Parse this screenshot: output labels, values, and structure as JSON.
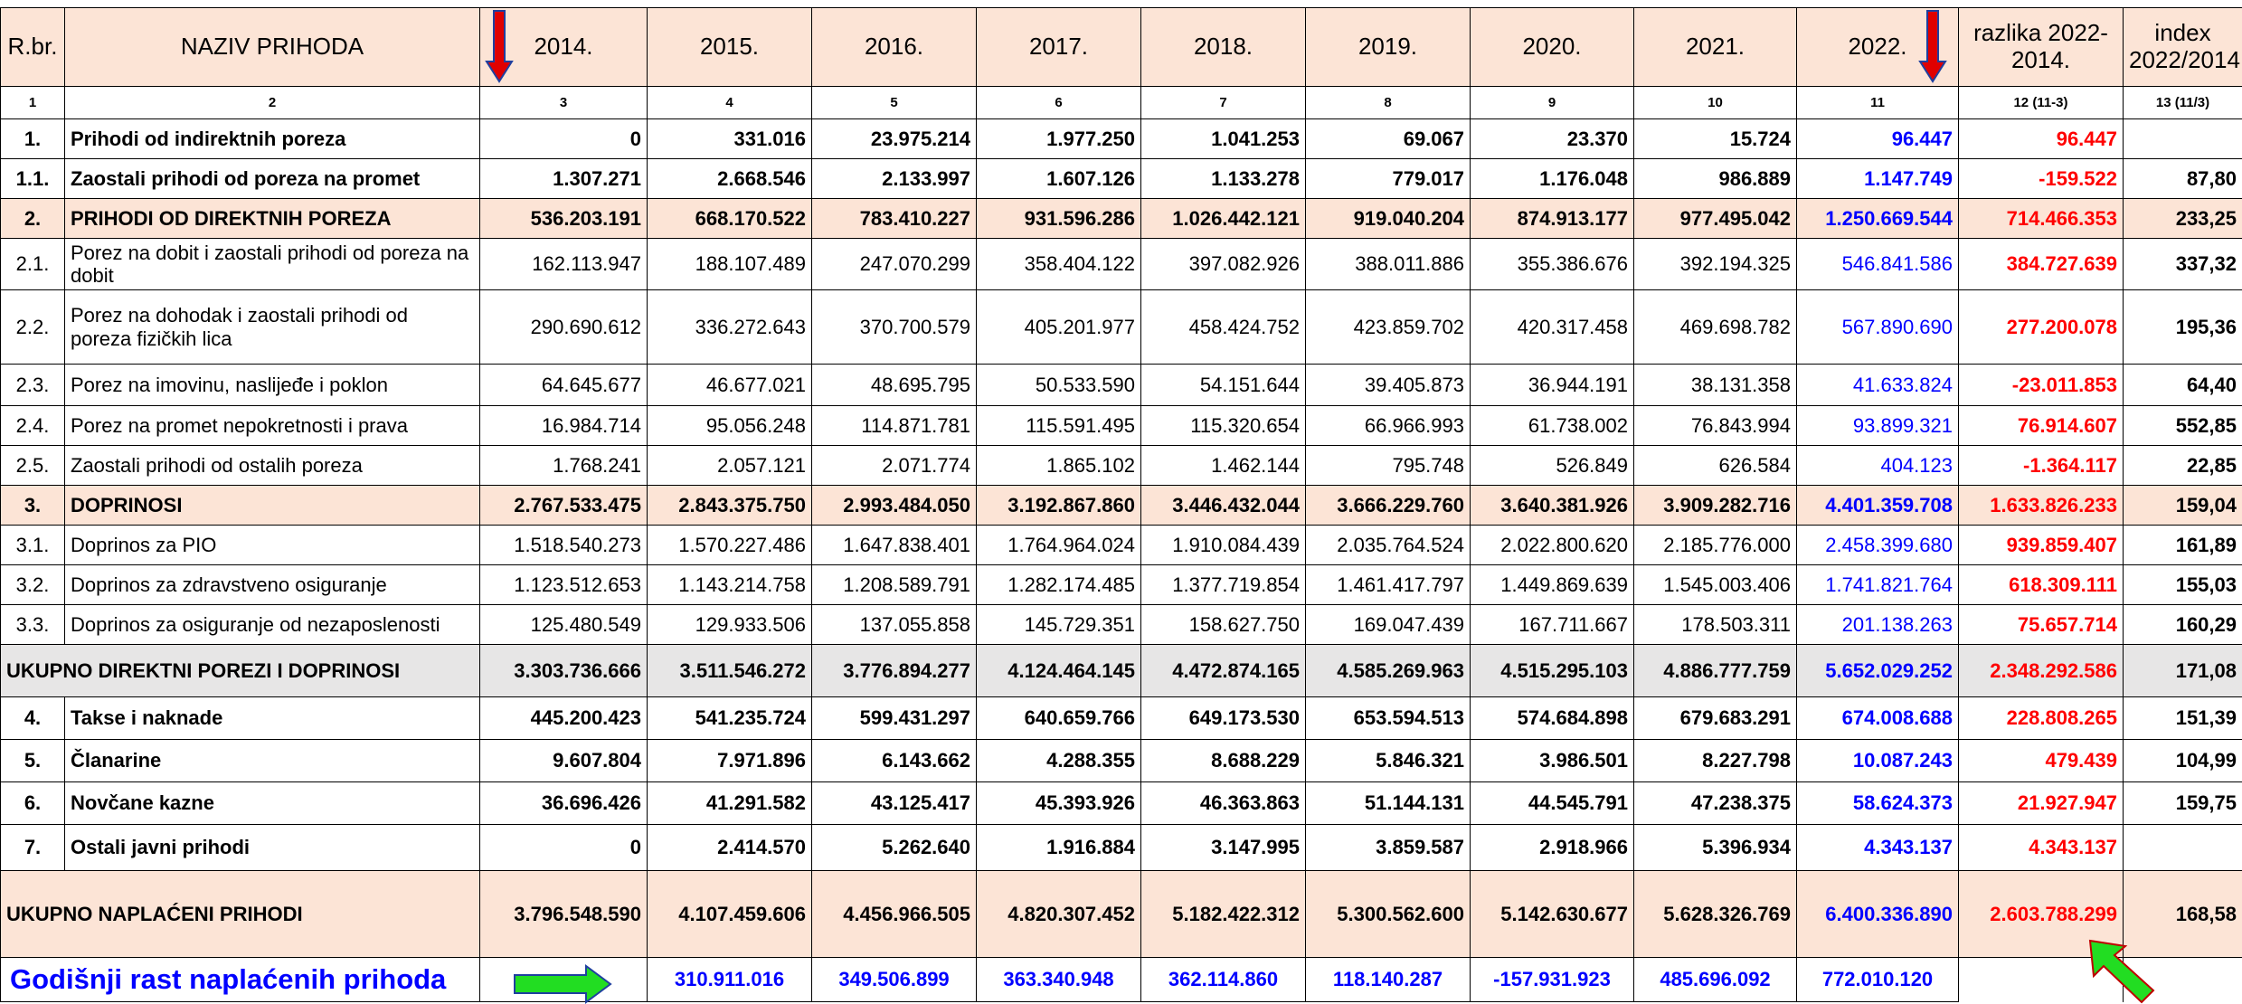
{
  "table": {
    "header": [
      "R.br.",
      "NAZIV PRIHODA",
      "2014.",
      "2015.",
      "2016.",
      "2017.",
      "2018.",
      "2019.",
      "2020.",
      "2021.",
      "2022.",
      "razlika 2022-2014.",
      "index 2022/2014"
    ],
    "column_numbers": [
      "1",
      "2",
      "3",
      "4",
      "5",
      "6",
      "7",
      "8",
      "9",
      "10",
      "11",
      "12 (11-3)",
      "13 (11/3)"
    ],
    "rows": [
      {
        "rbr": "1.",
        "name": "Prihodi od indirektnih poreza",
        "values": [
          "0",
          "331.016",
          "23.975.214",
          "1.977.250",
          "1.041.253",
          "69.067",
          "23.370",
          "15.724",
          "96.447"
        ],
        "razlika": "96.447",
        "index": null
      },
      {
        "rbr": "1.1.",
        "name": "Zaostali prihodi od poreza na promet",
        "values": [
          "1.307.271",
          "2.668.546",
          "2.133.997",
          "1.607.126",
          "1.133.278",
          "779.017",
          "1.176.048",
          "986.889",
          "1.147.749"
        ],
        "razlika": "-159.522",
        "index": "87,80"
      },
      {
        "rbr": "2.",
        "name": "PRIHODI OD DIREKTNIH POREZA",
        "values": [
          "536.203.191",
          "668.170.522",
          "783.410.227",
          "931.596.286",
          "1.026.442.121",
          "919.040.204",
          "874.913.177",
          "977.495.042",
          "1.250.669.544"
        ],
        "razlika": "714.466.353",
        "index": "233,25"
      },
      {
        "rbr": "2.1.",
        "name": "Porez na dobit i zaostali prihodi od poreza na dobit",
        "values": [
          "162.113.947",
          "188.107.489",
          "247.070.299",
          "358.404.122",
          "397.082.926",
          "388.011.886",
          "355.386.676",
          "392.194.325",
          "546.841.586"
        ],
        "razlika": "384.727.639",
        "index": "337,32"
      },
      {
        "rbr": "2.2.",
        "name": "Porez na dohodak i zaostali prihodi od poreza fizičkih lica",
        "values": [
          "290.690.612",
          "336.272.643",
          "370.700.579",
          "405.201.977",
          "458.424.752",
          "423.859.702",
          "420.317.458",
          "469.698.782",
          "567.890.690"
        ],
        "razlika": "277.200.078",
        "index": "195,36"
      },
      {
        "rbr": "2.3.",
        "name": "Porez na imovinu, naslijeđe i poklon",
        "values": [
          "64.645.677",
          "46.677.021",
          "48.695.795",
          "50.533.590",
          "54.151.644",
          "39.405.873",
          "36.944.191",
          "38.131.358",
          "41.633.824"
        ],
        "razlika": "-23.011.853",
        "index": "64,40"
      },
      {
        "rbr": "2.4.",
        "name": "Porez na promet nepokretnosti i prava",
        "values": [
          "16.984.714",
          "95.056.248",
          "114.871.781",
          "115.591.495",
          "115.320.654",
          "66.966.993",
          "61.738.002",
          "76.843.994",
          "93.899.321"
        ],
        "razlika": "76.914.607",
        "index": "552,85"
      },
      {
        "rbr": "2.5.",
        "name": "Zaostali prihodi od ostalih poreza",
        "values": [
          "1.768.241",
          "2.057.121",
          "2.071.774",
          "1.865.102",
          "1.462.144",
          "795.748",
          "526.849",
          "626.584",
          "404.123"
        ],
        "razlika": "-1.364.117",
        "index": "22,85"
      },
      {
        "rbr": "3.",
        "name": "DOPRINOSI",
        "values": [
          "2.767.533.475",
          "2.843.375.750",
          "2.993.484.050",
          "3.192.867.860",
          "3.446.432.044",
          "3.666.229.760",
          "3.640.381.926",
          "3.909.282.716",
          "4.401.359.708"
        ],
        "razlika": "1.633.826.233",
        "index": "159,04"
      },
      {
        "rbr": "3.1.",
        "name": "Doprinos za PIO",
        "values": [
          "1.518.540.273",
          "1.570.227.486",
          "1.647.838.401",
          "1.764.964.024",
          "1.910.084.439",
          "2.035.764.524",
          "2.022.800.620",
          "2.185.776.000",
          "2.458.399.680"
        ],
        "razlika": "939.859.407",
        "index": "161,89"
      },
      {
        "rbr": "3.2.",
        "name": "Doprinos za zdravstveno osiguranje",
        "values": [
          "1.123.512.653",
          "1.143.214.758",
          "1.208.589.791",
          "1.282.174.485",
          "1.377.719.854",
          "1.461.417.797",
          "1.449.869.639",
          "1.545.003.406",
          "1.741.821.764"
        ],
        "razlika": "618.309.111",
        "index": "155,03"
      },
      {
        "rbr": "3.3.",
        "name": "Doprinos za osiguranje od nezaposlenosti",
        "values": [
          "125.480.549",
          "129.933.506",
          "137.055.858",
          "145.729.351",
          "158.627.750",
          "169.047.439",
          "167.711.667",
          "178.503.311",
          "201.138.263"
        ],
        "razlika": "75.657.714",
        "index": "160,29"
      },
      {
        "rbr": null,
        "name": "UKUPNO DIREKTNI POREZI I DOPRINOSI",
        "values": [
          "3.303.736.666",
          "3.511.546.272",
          "3.776.894.277",
          "4.124.464.145",
          "4.472.874.165",
          "4.585.269.963",
          "4.515.295.103",
          "4.886.777.759",
          "5.652.029.252"
        ],
        "razlika": "2.348.292.586",
        "index": "171,08"
      },
      {
        "rbr": "4.",
        "name": "Takse i naknade",
        "values": [
          "445.200.423",
          "541.235.724",
          "599.431.297",
          "640.659.766",
          "649.173.530",
          "653.594.513",
          "574.684.898",
          "679.683.291",
          "674.008.688"
        ],
        "razlika": "228.808.265",
        "index": "151,39"
      },
      {
        "rbr": "5.",
        "name": "Članarine",
        "values": [
          "9.607.804",
          "7.971.896",
          "6.143.662",
          "4.288.355",
          "8.688.229",
          "5.846.321",
          "3.986.501",
          "8.227.798",
          "10.087.243"
        ],
        "razlika": "479.439",
        "index": "104,99"
      },
      {
        "rbr": "6.",
        "name": "Novčane kazne",
        "values": [
          "36.696.426",
          "41.291.582",
          "43.125.417",
          "45.393.926",
          "46.363.863",
          "51.144.131",
          "44.545.791",
          "47.238.375",
          "58.624.373"
        ],
        "razlika": "21.927.947",
        "index": "159,75"
      },
      {
        "rbr": "7.",
        "name": "Ostali javni prihodi",
        "values": [
          "0",
          "2.414.570",
          "5.262.640",
          "1.916.884",
          "3.147.995",
          "3.859.587",
          "2.918.966",
          "5.396.934",
          "4.343.137"
        ],
        "razlika": "4.343.137",
        "index": null
      },
      {
        "rbr": null,
        "name": "UKUPNO NAPLAĆENI PRIHODI",
        "values": [
          "3.796.548.590",
          "4.107.459.606",
          "4.456.966.505",
          "4.820.307.452",
          "5.182.422.312",
          "5.300.562.600",
          "5.142.630.677",
          "5.628.326.769",
          "6.400.336.890"
        ],
        "razlika": "2.603.788.299",
        "index": "168,58"
      }
    ],
    "growth_row": {
      "label": "Godišnji rast naplaćenih prihoda",
      "values": [
        null,
        "310.911.016",
        "349.506.899",
        "363.340.948",
        "362.114.860",
        "118.140.287",
        "-157.931.923",
        "485.696.092",
        "772.010.120"
      ]
    }
  }
}
